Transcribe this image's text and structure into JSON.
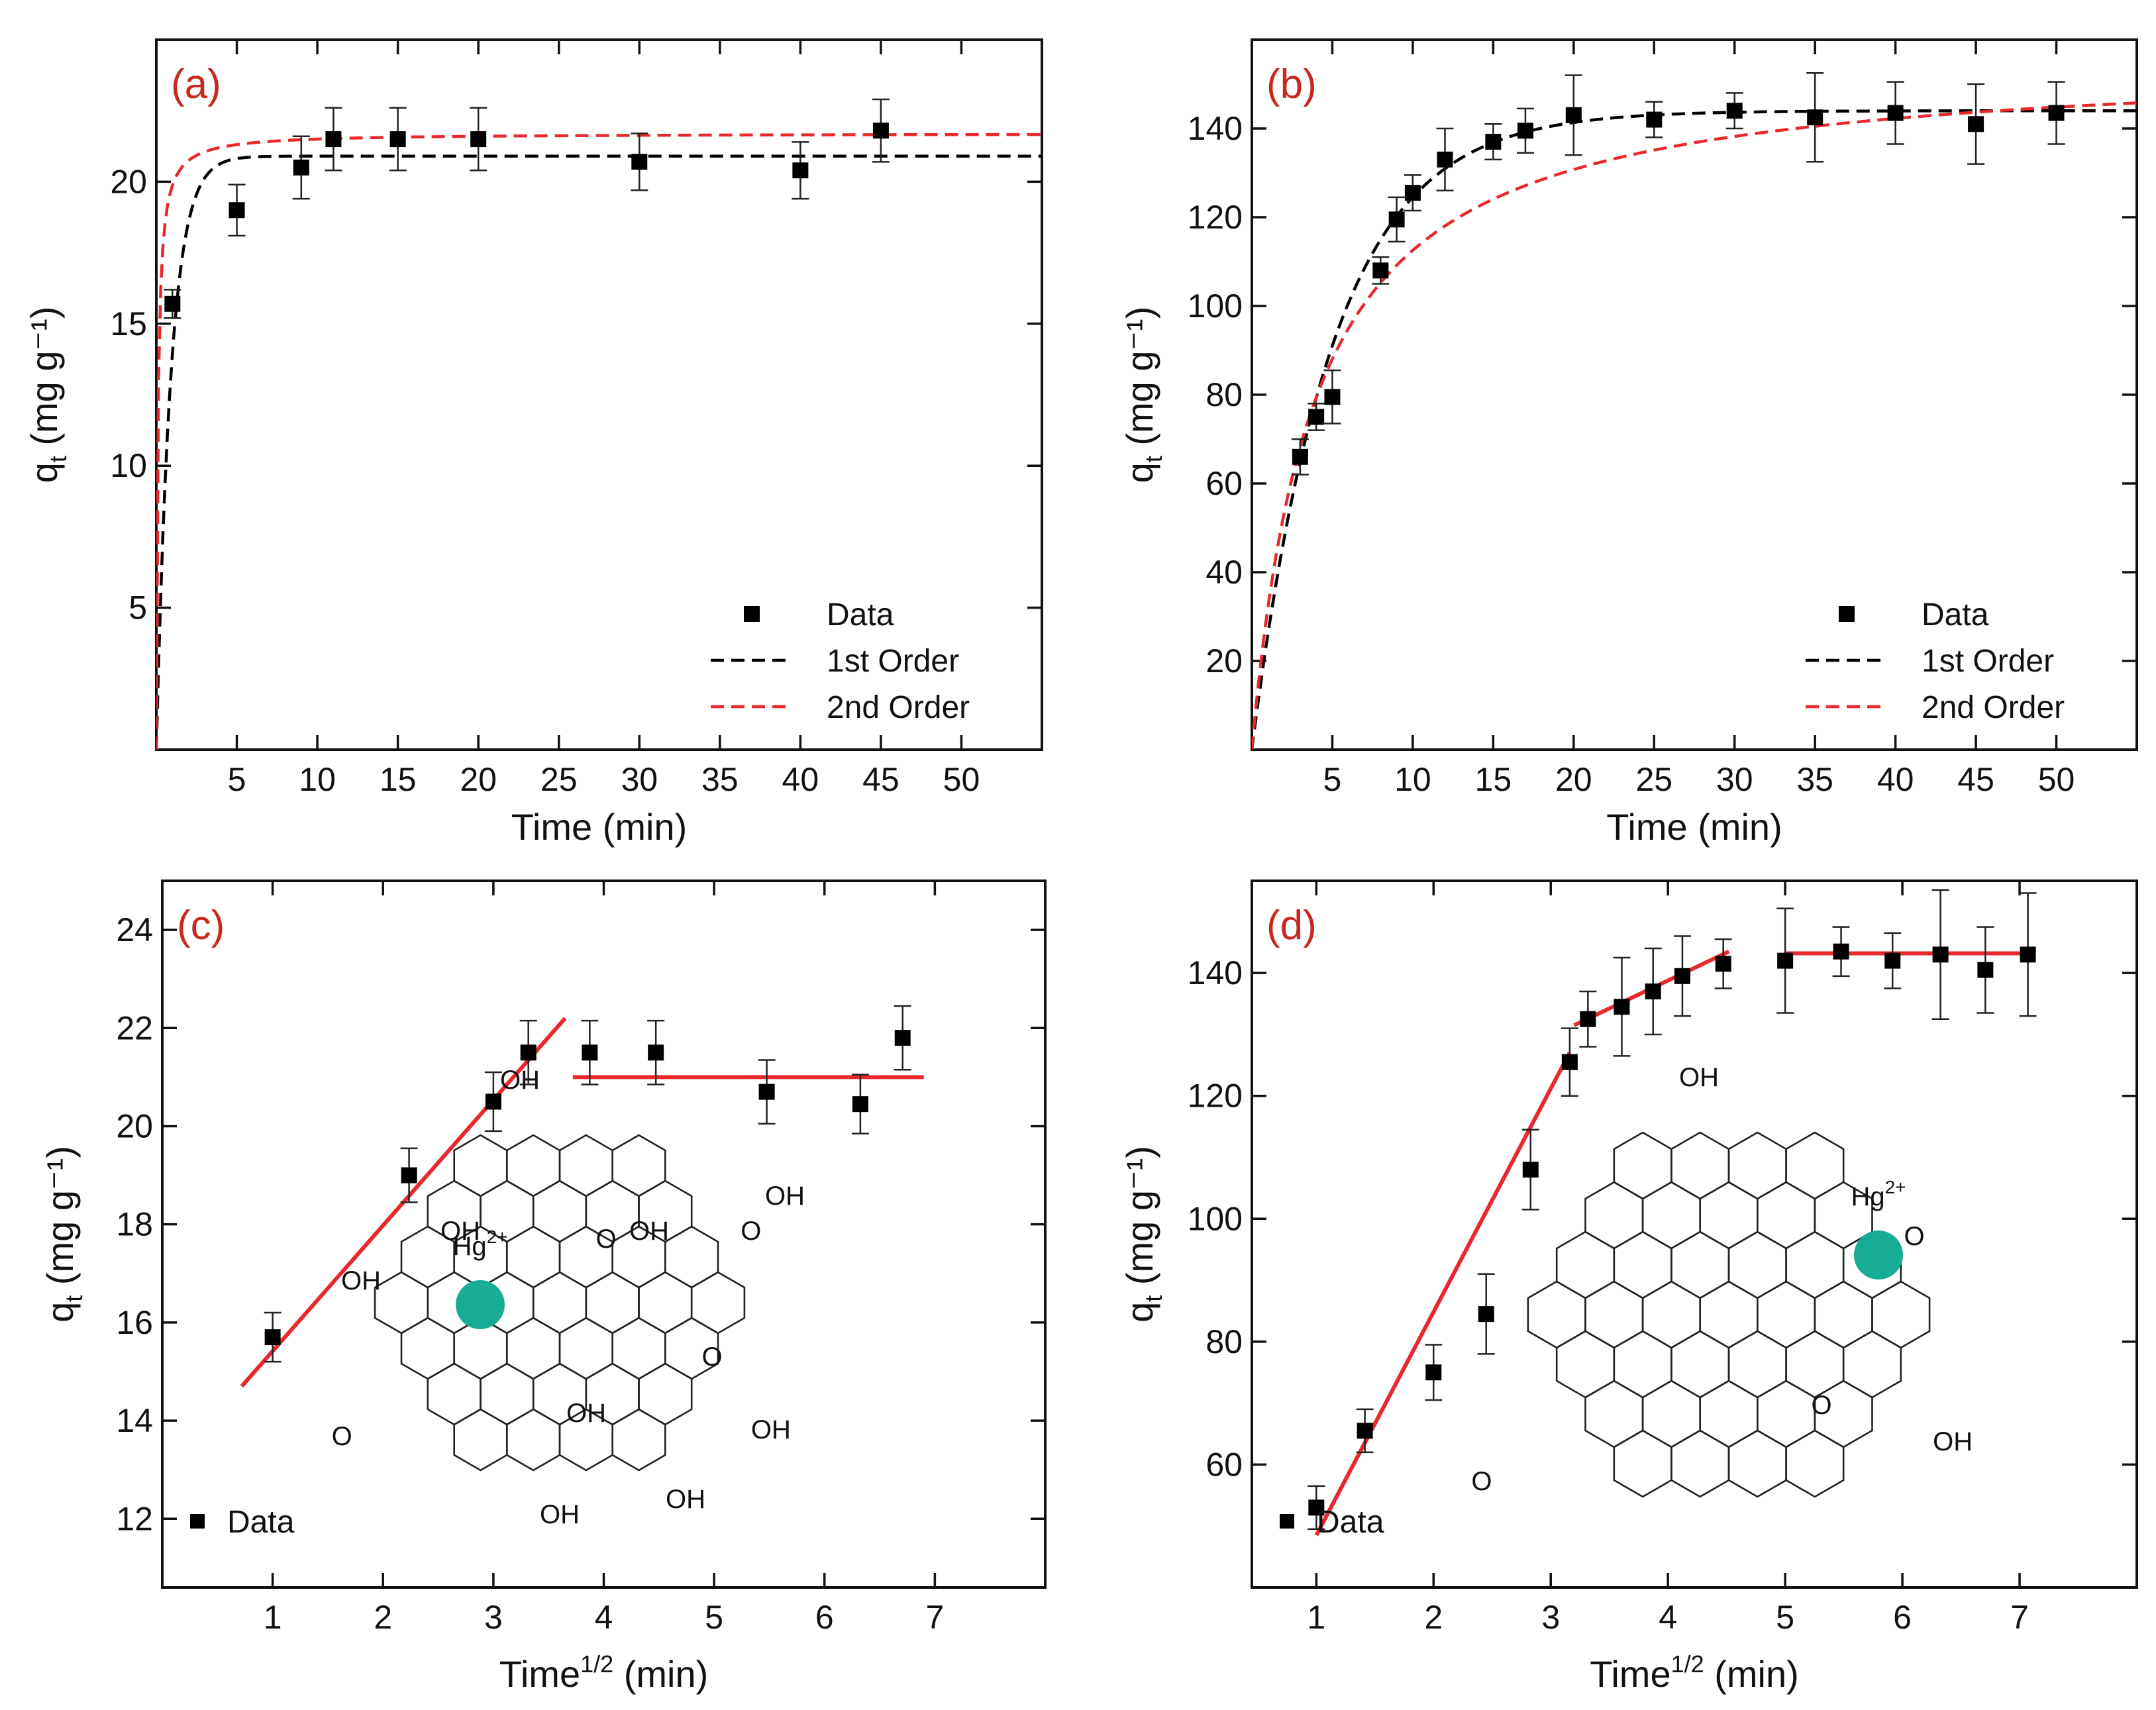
{
  "chart_data": [
    {
      "panel": "(a)",
      "type": "scatter",
      "xlabel": "Time (min)",
      "ylabel": "q (mg g⁻¹)",
      "ylabel_main": "q",
      "ylabel_sub": "t",
      "ylabel_rest": "(mg g⁻¹)",
      "xlim": [
        0,
        55
      ],
      "ylim": [
        0,
        25
      ],
      "xticks": [
        5,
        10,
        15,
        20,
        25,
        30,
        35,
        40,
        45,
        50
      ],
      "yticks": [
        5,
        10,
        15,
        20
      ],
      "series": [
        {
          "name": "Data",
          "kind": "points",
          "color": "#000000",
          "x": [
            1,
            5,
            9,
            11,
            15,
            20,
            30,
            40,
            45
          ],
          "y": [
            15.7,
            19.0,
            20.5,
            21.5,
            21.5,
            21.5,
            20.7,
            20.4,
            21.8
          ],
          "err": [
            0.5,
            0.9,
            1.1,
            1.1,
            1.1,
            1.1,
            1.0,
            1.0,
            1.1
          ]
        },
        {
          "name": "1st Order",
          "kind": "model1",
          "color": "#000000",
          "qe": 20.9,
          "k": 1.1
        },
        {
          "name": "2nd Order",
          "kind": "model2",
          "color": "#e8282d",
          "qe": 21.7,
          "k": 0.5
        }
      ],
      "legend": {
        "placement": "bottom-right",
        "entries": [
          "Data",
          "1st Order",
          "2nd Order"
        ]
      }
    },
    {
      "panel": "(b)",
      "type": "scatter",
      "xlabel": "Time (min)",
      "ylabel": "q (mg g⁻¹)",
      "ylabel_main": "q",
      "ylabel_sub": "t",
      "ylabel_rest": "(mg g⁻¹)",
      "xlim": [
        0,
        55
      ],
      "ylim": [
        0,
        160
      ],
      "xticks": [
        5,
        10,
        15,
        20,
        25,
        30,
        35,
        40,
        45,
        50
      ],
      "yticks": [
        20,
        40,
        60,
        80,
        100,
        120,
        140
      ],
      "series": [
        {
          "name": "Data",
          "kind": "points",
          "color": "#000000",
          "x": [
            3,
            4,
            5,
            8,
            9,
            10,
            12,
            15,
            17,
            20,
            25,
            30,
            35,
            40,
            45,
            50
          ],
          "y": [
            66,
            75,
            79.5,
            108,
            119.5,
            125.5,
            133,
            137,
            139.5,
            143,
            142,
            144,
            142.5,
            143.5,
            141,
            143.5
          ],
          "err": [
            4,
            3,
            6,
            3,
            5,
            4,
            7,
            4,
            5,
            9,
            4,
            4,
            10,
            7,
            9,
            7
          ]
        },
        {
          "name": "1st Order",
          "kind": "model1",
          "color": "#000000",
          "qe": 144,
          "k": 0.2
        },
        {
          "name": "2nd Order",
          "kind": "model2",
          "color": "#e8282d",
          "qe": 156,
          "k": 0.00166
        }
      ],
      "legend": {
        "placement": "bottom-right",
        "entries": [
          "Data",
          "1st Order",
          "2nd Order"
        ]
      }
    },
    {
      "panel": "(c)",
      "type": "scatter",
      "xlabel_main": "Time",
      "xlabel_sup": "1/2",
      "xlabel_rest": "(min)",
      "ylabel_main": "q",
      "ylabel_sub": "t",
      "ylabel_rest": "(mg g⁻¹)",
      "xlim": [
        0,
        8
      ],
      "ylim": [
        10.6,
        25
      ],
      "xticks": [
        1,
        2,
        3,
        4,
        5,
        6,
        7
      ],
      "yticks": [
        12,
        14,
        16,
        18,
        20,
        22,
        24
      ],
      "series": [
        {
          "name": "Data",
          "kind": "points",
          "color": "#000000",
          "x": [
            1,
            2.236,
            3,
            3.317,
            3.873,
            4.472,
            5.477,
            6.325,
            6.708
          ],
          "y": [
            15.7,
            19.0,
            20.5,
            21.5,
            21.5,
            21.5,
            20.7,
            20.45,
            21.8
          ],
          "err": [
            0.5,
            0.55,
            0.6,
            0.65,
            0.65,
            0.65,
            0.65,
            0.6,
            0.65
          ]
        },
        {
          "name": "Fit 1",
          "kind": "line",
          "color": "#e8282d",
          "x": [
            0.72,
            3.65
          ],
          "y": [
            14.7,
            22.2
          ]
        },
        {
          "name": "Fit 2",
          "kind": "line",
          "color": "#e8282d",
          "x": [
            3.72,
            6.9
          ],
          "y": [
            21.0,
            21.0
          ]
        }
      ],
      "legend": {
        "placement": "bottom-left",
        "entries": [
          "Data"
        ]
      },
      "annotations": {
        "ion": "Hg²⁺",
        "ion_base": "Hg",
        "ion_sup": "2+",
        "ion_color": "#17ad94",
        "groups": [
          "OH",
          "OH",
          "O",
          "OH",
          "OH",
          "OH",
          "OH",
          "O",
          "O",
          "OH",
          "OH",
          "OH",
          "O"
        ]
      }
    },
    {
      "panel": "(d)",
      "type": "scatter",
      "xlabel_main": "Time",
      "xlabel_sup": "1/2",
      "xlabel_rest": "(min)",
      "ylabel_main": "q",
      "ylabel_sub": "t",
      "ylabel_rest": "(mg g⁻¹)",
      "xlim": [
        0.45,
        8
      ],
      "ylim": [
        40,
        155
      ],
      "xticks": [
        1,
        2,
        3,
        4,
        5,
        6,
        7
      ],
      "yticks": [
        60,
        80,
        100,
        120,
        140
      ],
      "series": [
        {
          "name": "Data",
          "kind": "points",
          "color": "#000000",
          "x": [
            1,
            1.414,
            2,
            2.449,
            2.828,
            3.162,
            3.317,
            3.606,
            3.873,
            4.123,
            4.472,
            5,
            5.477,
            5.916,
            6.325,
            6.708,
            7.071
          ],
          "y": [
            53,
            65.5,
            75,
            84.5,
            108,
            125.5,
            132.5,
            134.5,
            137,
            139.5,
            141.5,
            142,
            143.5,
            142,
            143,
            140.5,
            143
          ],
          "err": [
            3.5,
            3.5,
            4.5,
            6.5,
            6.5,
            5.5,
            4.5,
            8,
            7,
            6.5,
            4,
            8.5,
            4,
            4.5,
            10.5,
            7,
            10
          ]
        },
        {
          "name": "Fit 1",
          "kind": "line",
          "color": "#e8282d",
          "x": [
            1,
            3.16
          ],
          "y": [
            48.5,
            127
          ]
        },
        {
          "name": "Fit 2",
          "kind": "line",
          "color": "#e8282d",
          "x": [
            3.2,
            4.52
          ],
          "y": [
            131.5,
            143.5
          ]
        },
        {
          "name": "Fit 3",
          "kind": "line",
          "color": "#e8282d",
          "x": [
            5,
            7.1
          ],
          "y": [
            143.2,
            143.2
          ]
        }
      ],
      "legend": {
        "placement": "bottom-left",
        "entries": [
          "Data"
        ]
      },
      "annotations": {
        "ion": "Hg²⁺",
        "ion_base": "Hg",
        "ion_sup": "2+",
        "ion_color": "#17ad94",
        "groups": [
          "OH",
          "O",
          "O",
          "O",
          "OH"
        ]
      }
    }
  ],
  "colors": {
    "label": "#c8281e",
    "axis": "#111111",
    "fit": "#e8282d",
    "ion": "#17ad94"
  }
}
